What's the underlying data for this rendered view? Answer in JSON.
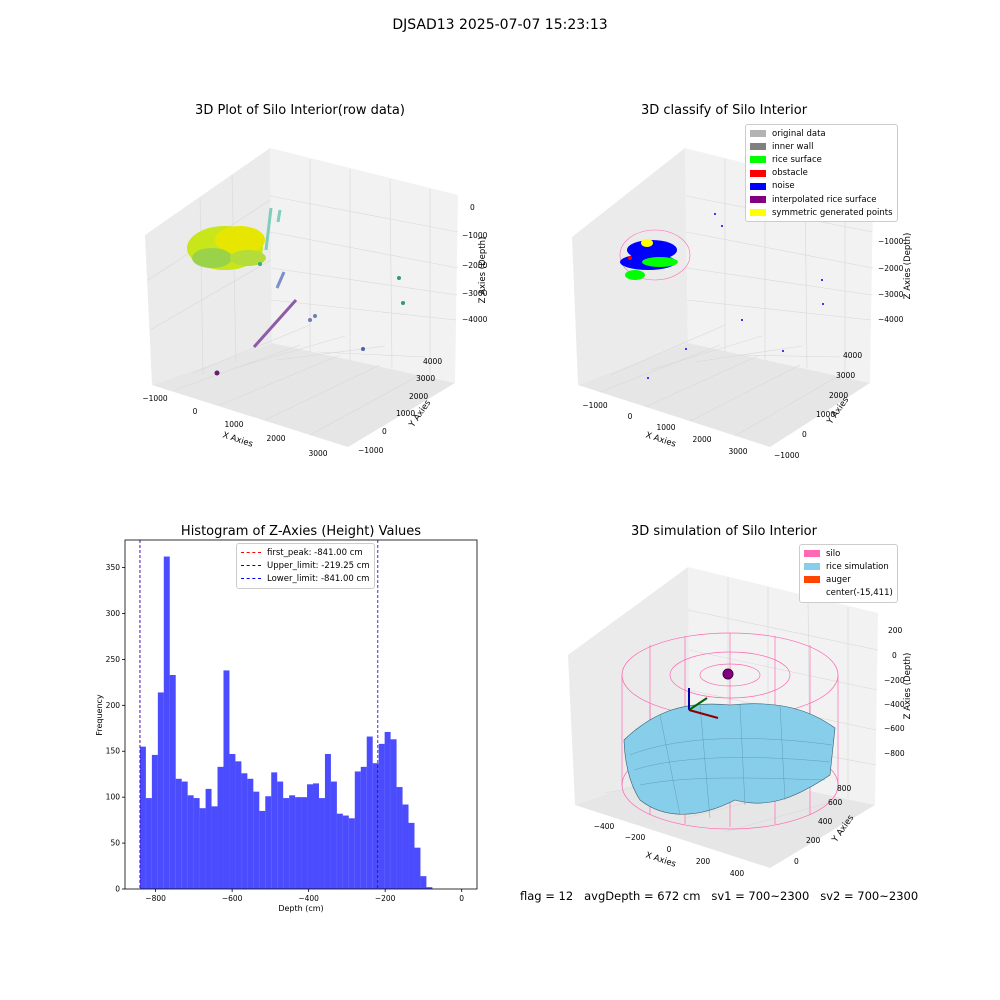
{
  "figure": {
    "suptitle": "DJSAD13 2025-07-07 15:23:13",
    "footer": "flag = 12   avgDepth = 672 cm   sv1 = 700~2300   sv2 = 700~2300"
  },
  "panels": {
    "raw": {
      "title": "3D Plot of Silo Interior(row data)",
      "xlabel": "X Axies",
      "ylabel": "Y Axies",
      "zlabel": "Z Axies (Depth)",
      "xticks": [
        "−1000",
        "0",
        "1000",
        "2000",
        "3000"
      ],
      "yticks": [
        "−1000",
        "0",
        "1000",
        "2000",
        "3000",
        "4000"
      ],
      "zticks": [
        "0",
        "−1000",
        "−2000",
        "−3000",
        "−4000"
      ]
    },
    "classify": {
      "title": "3D classify of Silo Interior",
      "xlabel": "X Axies",
      "ylabel": "Y Axies",
      "zlabel": "Z Axies (Depth)",
      "xticks": [
        "−1000",
        "0",
        "1000",
        "2000",
        "3000"
      ],
      "yticks": [
        "−1000",
        "0",
        "1000",
        "2000",
        "3000",
        "4000"
      ],
      "zticks": [
        "0",
        "−1000",
        "−2000",
        "−3000",
        "−4000"
      ],
      "legend": [
        {
          "label": "original data",
          "color": "#b3b3b3"
        },
        {
          "label": "inner wall",
          "color": "#808080"
        },
        {
          "label": "rice surface",
          "color": "#00ff00"
        },
        {
          "label": "obstacle",
          "color": "#ff0000"
        },
        {
          "label": "noise",
          "color": "#0000ff"
        },
        {
          "label": "interpolated rice surface",
          "color": "#800080"
        },
        {
          "label": "symmetric generated points",
          "color": "#ffff00"
        }
      ]
    },
    "simulation": {
      "title": "3D simulation of Silo Interior",
      "xlabel": "X Axies",
      "ylabel": "Y Axies",
      "zlabel": "Z Axies (Depth)",
      "xticks": [
        "−400",
        "−200",
        "0",
        "200",
        "400"
      ],
      "yticks": [
        "0",
        "200",
        "400",
        "600",
        "800"
      ],
      "zticks": [
        "200",
        "0",
        "−200",
        "−400",
        "−600",
        "−800"
      ],
      "legend": [
        {
          "label": "silo",
          "color": "#ff69b4"
        },
        {
          "label": "rice simulation",
          "color": "#87ceeb"
        },
        {
          "label": "auger",
          "color": "#ff4500"
        },
        {
          "label": "center(-15,411)",
          "color": ""
        }
      ]
    }
  },
  "chart_data": [
    {
      "type": "bar",
      "title": "Histogram of Z-Axies (Height) Values",
      "xlabel": "Depth (cm)",
      "ylabel": "Frequency",
      "xlim": [
        -880,
        40
      ],
      "ylim": [
        0,
        380
      ],
      "xticks": [
        -800,
        -600,
        -400,
        -200,
        0
      ],
      "yticks": [
        0,
        50,
        100,
        150,
        200,
        250,
        300,
        350
      ],
      "bar_color": "#0000ff",
      "bin_edges_start": -841,
      "bin_width": 15.6,
      "values": [
        155,
        99,
        146,
        214,
        362,
        233,
        120,
        117,
        102,
        99,
        88,
        109,
        90,
        133,
        238,
        147,
        139,
        126,
        120,
        106,
        85,
        101,
        127,
        117,
        99,
        102,
        100,
        100,
        114,
        115,
        99,
        147,
        117,
        82,
        80,
        77,
        128,
        133,
        166,
        137,
        158,
        171,
        163,
        111,
        92,
        72,
        45,
        14,
        2
      ],
      "lines": [
        {
          "label": "first_peak: -841.00 cm",
          "x": -841,
          "color": "#ff0000"
        },
        {
          "label": "Upper_limit: -219.25 cm",
          "x": -219.25,
          "color": "#0000cd"
        },
        {
          "label": "Lower_limit: -841.00 cm",
          "x": -841,
          "color": "#0000ff"
        }
      ],
      "legend_position": "top-center"
    }
  ]
}
